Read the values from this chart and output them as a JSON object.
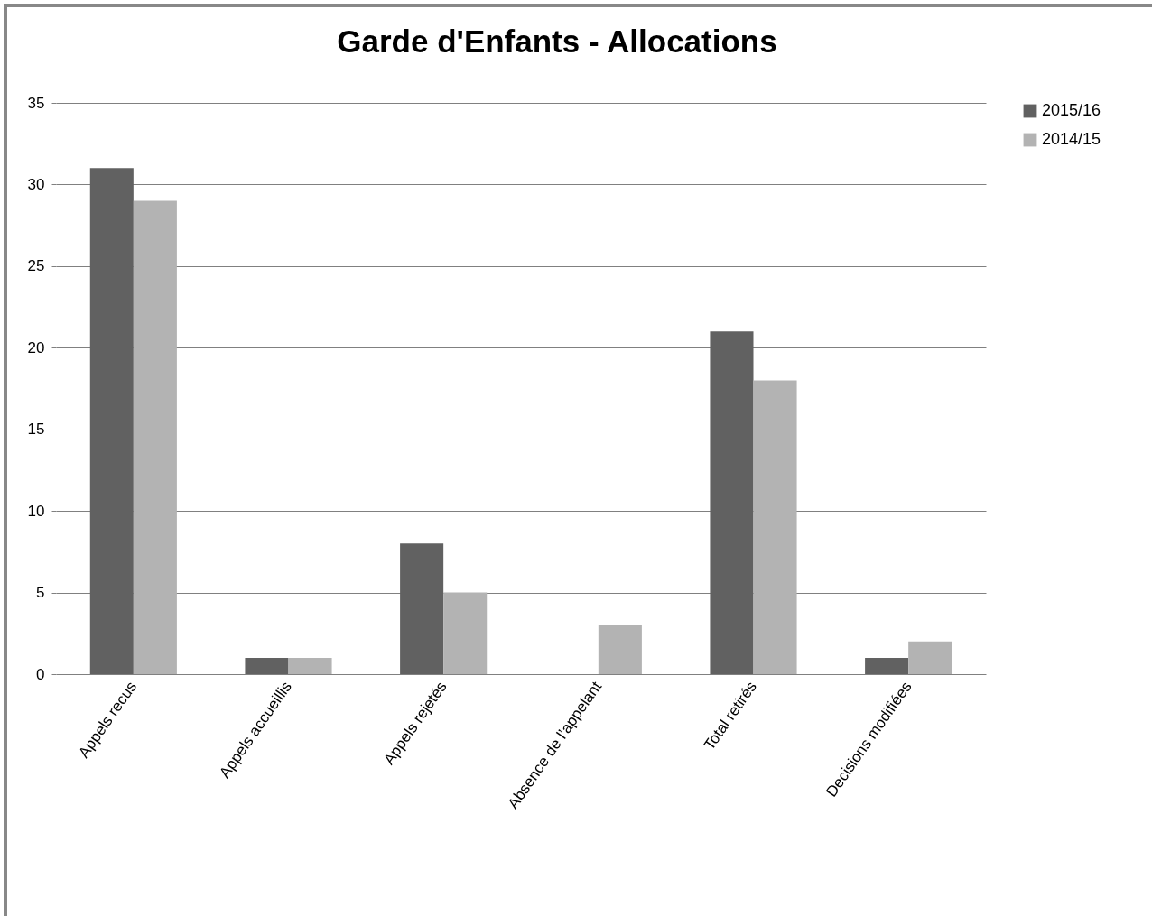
{
  "chart_data": {
    "type": "bar",
    "title": "Garde d'Enfants - Allocations",
    "categories": [
      "Appels recus",
      "Appels accueillis",
      "Appels rejetés",
      "Absence de l’appelant",
      "Total retirés",
      "Decisions modifiées"
    ],
    "series": [
      {
        "name": "2015/16",
        "color": "#616161",
        "values": [
          31,
          1,
          8,
          0,
          21,
          1
        ]
      },
      {
        "name": "2014/15",
        "color": "#b3b3b3",
        "values": [
          29,
          1,
          5,
          3,
          18,
          2
        ]
      }
    ],
    "ylim": [
      0,
      35
    ],
    "yticks": [
      0,
      5,
      10,
      15,
      20,
      25,
      30,
      35
    ],
    "grid": "y",
    "legend": "right"
  }
}
